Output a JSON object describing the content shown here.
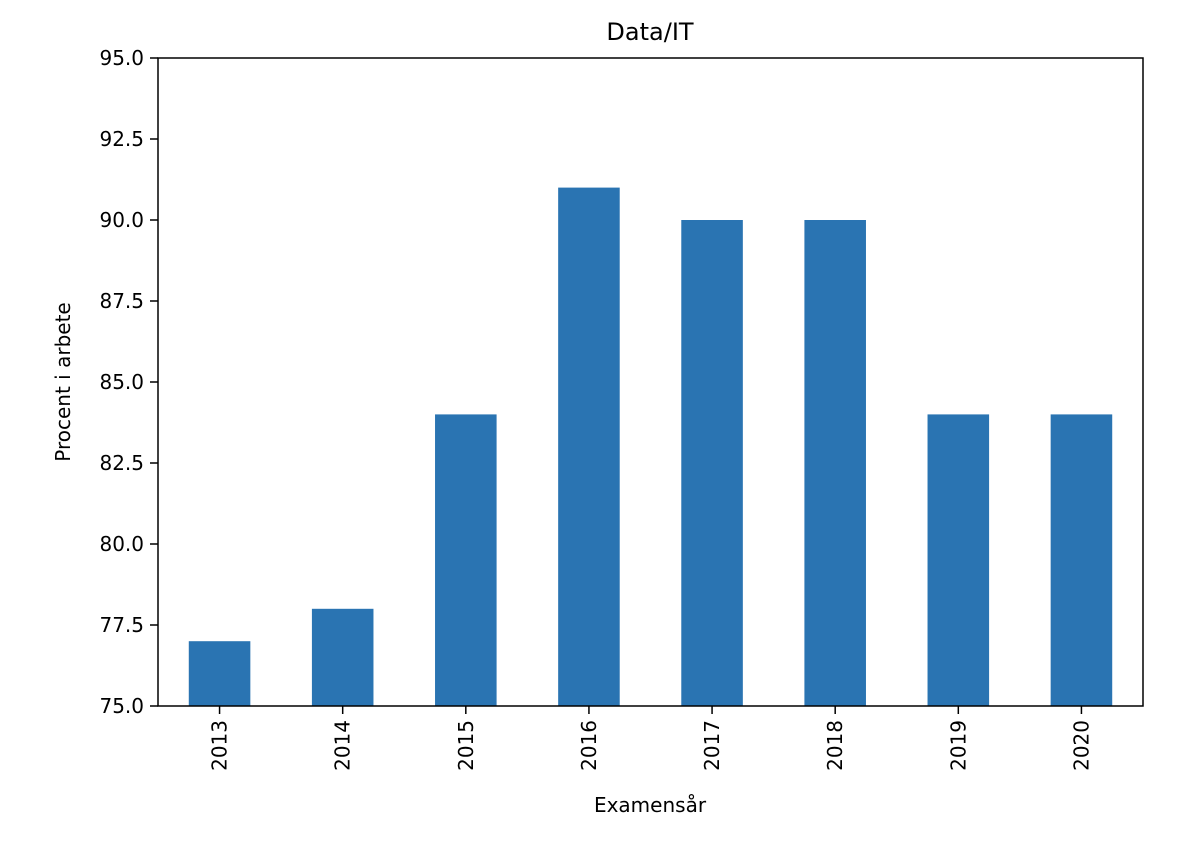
{
  "chart_data": {
    "type": "bar",
    "title": "Data/IT",
    "xlabel": "Examensår",
    "ylabel": "Procent i arbete",
    "categories": [
      "2013",
      "2014",
      "2015",
      "2016",
      "2017",
      "2018",
      "2019",
      "2020"
    ],
    "values": [
      77,
      78,
      84,
      91,
      90,
      90,
      84,
      84
    ],
    "ylim": [
      75.0,
      95.0
    ],
    "yticks": [
      "75.0",
      "77.5",
      "80.0",
      "82.5",
      "85.0",
      "87.5",
      "90.0",
      "92.5",
      "95.0"
    ],
    "grid": false,
    "bar_color": "#2a74b2"
  }
}
